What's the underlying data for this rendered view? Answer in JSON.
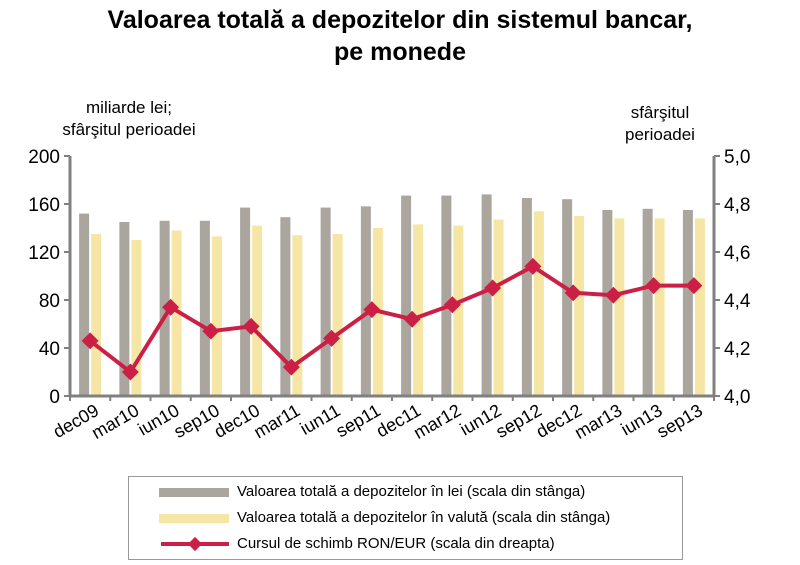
{
  "title_line1": "Valoarea totală a depozitelor din sistemul bancar,",
  "title_line2": "pe monede",
  "colors": {
    "lei": "#aaa59d",
    "valuta": "#f5e6a5",
    "rate": "#cc1f45",
    "axis": "#808080"
  },
  "chart_data": {
    "type": "bar",
    "title": "Valoarea totală a depozitelor din sistemul bancar, pe monede",
    "left_axis_label": [
      "miliarde lei;",
      "sfârşitul perioadei"
    ],
    "right_axis_label": [
      "sfârşitul",
      "perioadei"
    ],
    "categories": [
      "dec09",
      "mar10",
      "iun10",
      "sep10",
      "dec10",
      "mar11",
      "iun11",
      "sep11",
      "dec11",
      "mar12",
      "iun12",
      "sep12",
      "dec12",
      "mar13",
      "iun13",
      "sep13"
    ],
    "left_ylim": [
      0,
      200
    ],
    "left_ticks": [
      "0",
      "40",
      "80",
      "120",
      "160",
      "200"
    ],
    "right_ylim": [
      4.0,
      5.0
    ],
    "right_ticks": [
      "4,0",
      "4,2",
      "4,4",
      "4,6",
      "4,8",
      "5,0"
    ],
    "grid": false,
    "legend_position": "bottom",
    "series": [
      {
        "name": "Valoarea totală a depozitelor în lei (scala din stânga)",
        "type": "bar",
        "axis": "left",
        "values": [
          152,
          145,
          146,
          146,
          157,
          149,
          157,
          158,
          167,
          167,
          168,
          165,
          164,
          155,
          156,
          155
        ]
      },
      {
        "name": "Valoarea totală a depozitelor în valută (scala din stânga)",
        "type": "bar",
        "axis": "left",
        "values": [
          135,
          130,
          138,
          133,
          142,
          134,
          135,
          140,
          143,
          142,
          147,
          154,
          150,
          148,
          148,
          148
        ]
      },
      {
        "name": "Cursul de schimb RON/EUR (scala din dreapta)",
        "type": "line",
        "axis": "right",
        "values": [
          4.23,
          4.1,
          4.37,
          4.27,
          4.29,
          4.12,
          4.24,
          4.36,
          4.32,
          4.38,
          4.45,
          4.54,
          4.43,
          4.42,
          4.46,
          4.46
        ]
      }
    ]
  }
}
